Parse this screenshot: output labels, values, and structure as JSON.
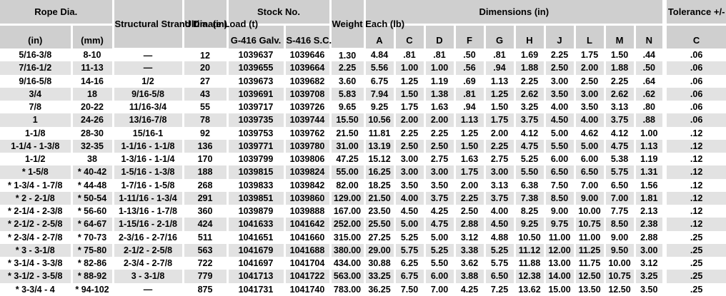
{
  "header": {
    "rope_dia": "Rope Dia.",
    "rope_in": "(in)",
    "rope_mm": "(mm)",
    "strand_dia": "Structural\nStrand Dia.\n(in)",
    "ultimate_load": "Ultimate\nLoad\n(t)",
    "stock_no": "Stock No.",
    "stock_g416": "G-416\nGalv.",
    "stock_s416": "S-416\nS.C.",
    "weight_each": "Weight\nEach\n(lb)",
    "dimensions": "Dimensions\n(in)",
    "dim_letters": [
      "A",
      "C",
      "D",
      "F",
      "G",
      "H",
      "J",
      "L",
      "M",
      "N"
    ],
    "tolerance": "Tolerance\n+/-",
    "tolerance_c": "C"
  },
  "column_keys": [
    "rope-dia-in",
    "rope-dia-mm",
    "strand-dia",
    "ultimate-load",
    "stock-g416",
    "stock-s416",
    "weight-each",
    "dim-a",
    "dim-c",
    "dim-d",
    "dim-f",
    "dim-g",
    "dim-h",
    "dim-j",
    "dim-l",
    "dim-m",
    "dim-n",
    "tolerance-c"
  ],
  "rows": [
    [
      "5/16-3/8",
      "8-10",
      "—",
      "12",
      "1039637",
      "1039646",
      "1.30",
      "4.84",
      ".81",
      ".81",
      ".50",
      ".81",
      "1.69",
      "2.25",
      "1.75",
      "1.50",
      ".44",
      ".06"
    ],
    [
      "7/16-1/2",
      "11-13",
      "—",
      "20",
      "1039655",
      "1039664",
      "2.25",
      "5.56",
      "1.00",
      "1.00",
      ".56",
      ".94",
      "1.88",
      "2.50",
      "2.00",
      "1.88",
      ".50",
      ".06"
    ],
    [
      "9/16-5/8",
      "14-16",
      "1/2",
      "27",
      "1039673",
      "1039682",
      "3.60",
      "6.75",
      "1.25",
      "1.19",
      ".69",
      "1.13",
      "2.25",
      "3.00",
      "2.50",
      "2.25",
      ".64",
      ".06"
    ],
    [
      "3/4",
      "18",
      "9/16-5/8",
      "43",
      "1039691",
      "1039708",
      "5.83",
      "7.94",
      "1.50",
      "1.38",
      ".81",
      "1.25",
      "2.62",
      "3.50",
      "3.00",
      "2.62",
      ".62",
      ".06"
    ],
    [
      "7/8",
      "20-22",
      "11/16-3/4",
      "55",
      "1039717",
      "1039726",
      "9.65",
      "9.25",
      "1.75",
      "1.63",
      ".94",
      "1.50",
      "3.25",
      "4.00",
      "3.50",
      "3.13",
      ".80",
      ".06"
    ],
    [
      "1",
      "24-26",
      "13/16-7/8",
      "78",
      "1039735",
      "1039744",
      "15.50",
      "10.56",
      "2.00",
      "2.00",
      "1.13",
      "1.75",
      "3.75",
      "4.50",
      "4.00",
      "3.75",
      ".88",
      ".06"
    ],
    [
      "1-1/8",
      "28-30",
      "15/16-1",
      "92",
      "1039753",
      "1039762",
      "21.50",
      "11.81",
      "2.25",
      "2.25",
      "1.25",
      "2.00",
      "4.12",
      "5.00",
      "4.62",
      "4.12",
      "1.00",
      ".12"
    ],
    [
      "1-1/4 - 1-3/8",
      "32-35",
      "1-1/16 - 1-1/8",
      "136",
      "1039771",
      "1039780",
      "31.00",
      "13.19",
      "2.50",
      "2.50",
      "1.50",
      "2.25",
      "4.75",
      "5.50",
      "5.00",
      "4.75",
      "1.13",
      ".12"
    ],
    [
      "1-1/2",
      "38",
      "1-3/16 - 1-1/4",
      "170",
      "1039799",
      "1039806",
      "47.25",
      "15.12",
      "3.00",
      "2.75",
      "1.63",
      "2.75",
      "5.25",
      "6.00",
      "6.00",
      "5.38",
      "1.19",
      ".12"
    ],
    [
      "* 1-5/8",
      "* 40-42",
      "1-5/16 - 1-3/8",
      "188",
      "1039815",
      "1039824",
      "55.00",
      "16.25",
      "3.00",
      "3.00",
      "1.75",
      "3.00",
      "5.50",
      "6.50",
      "6.50",
      "5.75",
      "1.31",
      ".12"
    ],
    [
      "* 1-3/4 - 1-7/8",
      "* 44-48",
      "1-7/16 - 1-5/8",
      "268",
      "1039833",
      "1039842",
      "82.00",
      "18.25",
      "3.50",
      "3.50",
      "2.00",
      "3.13",
      "6.38",
      "7.50",
      "7.00",
      "6.50",
      "1.56",
      ".12"
    ],
    [
      "* 2 - 2-1/8",
      "* 50-54",
      "1-11/16 - 1-3/4",
      "291",
      "1039851",
      "1039860",
      "129.00",
      "21.50",
      "4.00",
      "3.75",
      "2.25",
      "3.75",
      "7.38",
      "8.50",
      "9.00",
      "7.00",
      "1.81",
      ".12"
    ],
    [
      "* 2-1/4 - 2-3/8",
      "* 56-60",
      "1-13/16 - 1-7/8",
      "360",
      "1039879",
      "1039888",
      "167.00",
      "23.50",
      "4.50",
      "4.25",
      "2.50",
      "4.00",
      "8.25",
      "9.00",
      "10.00",
      "7.75",
      "2.13",
      ".12"
    ],
    [
      "* 2-1/2 - 2-5/8",
      "* 64-67",
      "1-15/16 - 2-1/8",
      "424",
      "1041633",
      "1041642",
      "252.00",
      "25.50",
      "5.00",
      "4.75",
      "2.88",
      "4.50",
      "9.25",
      "9.75",
      "10.75",
      "8.50",
      "2.38",
      ".12"
    ],
    [
      "* 2-3/4 - 2-7/8",
      "* 70-73",
      "2-3/16 - 2-7/16",
      "511",
      "1041651",
      "1041660",
      "315.00",
      "27.25",
      "5.25",
      "5.00",
      "3.12",
      "4.88",
      "10.50",
      "11.00",
      "11.00",
      "9.00",
      "2.88",
      ".25"
    ],
    [
      "* 3 - 3-1/8",
      "* 75-80",
      "2-1/2 - 2-5/8",
      "563",
      "1041679",
      "1041688",
      "380.00",
      "29.00",
      "5.75",
      "5.25",
      "3.38",
      "5.25",
      "11.12",
      "12.00",
      "11.25",
      "9.50",
      "3.00",
      ".25"
    ],
    [
      "* 3-1/4 - 3-3/8",
      "* 82-86",
      "2-3/4 - 2-7/8",
      "722",
      "1041697",
      "1041704",
      "434.00",
      "30.88",
      "6.25",
      "5.50",
      "3.62",
      "5.75",
      "11.88",
      "13.00",
      "11.75",
      "10.00",
      "3.12",
      ".25"
    ],
    [
      "* 3-1/2 - 3-5/8",
      "* 88-92",
      "3 - 3-1/8",
      "779",
      "1041713",
      "1041722",
      "563.00",
      "33.25",
      "6.75",
      "6.00",
      "3.88",
      "6.50",
      "12.38",
      "14.00",
      "12.50",
      "10.75",
      "3.25",
      ".25"
    ],
    [
      "* 3-3/4 - 4",
      "* 94-102",
      "—",
      "875",
      "1041731",
      "1041740",
      "783.00",
      "36.25",
      "7.50",
      "7.00",
      "4.25",
      "7.25",
      "13.62",
      "15.00",
      "13.50",
      "12.50",
      "3.50",
      ".25"
    ]
  ],
  "colors": {
    "header_bg": "#cfcfcf",
    "stripe_bg": "#e2e2e2",
    "gutter": "#ffffff",
    "text": "#000000"
  }
}
